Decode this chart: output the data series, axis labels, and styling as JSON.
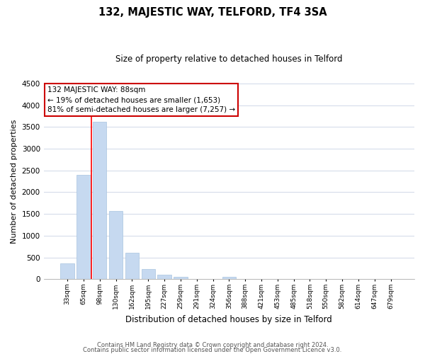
{
  "title": "132, MAJESTIC WAY, TELFORD, TF4 3SA",
  "subtitle": "Size of property relative to detached houses in Telford",
  "xlabel": "Distribution of detached houses by size in Telford",
  "ylabel": "Number of detached properties",
  "bar_labels": [
    "33sqm",
    "65sqm",
    "98sqm",
    "130sqm",
    "162sqm",
    "195sqm",
    "227sqm",
    "259sqm",
    "291sqm",
    "324sqm",
    "356sqm",
    "388sqm",
    "421sqm",
    "453sqm",
    "485sqm",
    "518sqm",
    "550sqm",
    "582sqm",
    "614sqm",
    "647sqm",
    "679sqm"
  ],
  "bar_values": [
    360,
    2400,
    3620,
    1570,
    600,
    235,
    100,
    55,
    0,
    0,
    55,
    0,
    0,
    0,
    0,
    0,
    0,
    0,
    0,
    0,
    0
  ],
  "bar_color": "#c6d9f0",
  "bar_edge_color": "#a8c4e0",
  "redline_x": 1.5,
  "ylim": [
    0,
    4500
  ],
  "yticks": [
    0,
    500,
    1000,
    1500,
    2000,
    2500,
    3000,
    3500,
    4000,
    4500
  ],
  "annotation_title": "132 MAJESTIC WAY: 88sqm",
  "annotation_line1": "← 19% of detached houses are smaller (1,653)",
  "annotation_line2": "81% of semi-detached houses are larger (7,257) →",
  "annotation_box_facecolor": "#ffffff",
  "annotation_box_edgecolor": "#cc0000",
  "footer_line1": "Contains HM Land Registry data © Crown copyright and database right 2024.",
  "footer_line2": "Contains public sector information licensed under the Open Government Licence v3.0.",
  "background_color": "#ffffff",
  "grid_color": "#d0d8e8"
}
